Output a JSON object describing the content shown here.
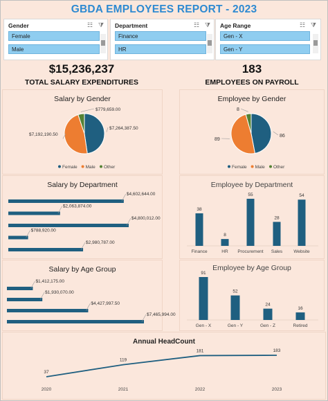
{
  "report_title": "GBDA EMPLOYEES REPORT - 2023",
  "slicers": [
    {
      "header": "Gender",
      "items": [
        "Female",
        "Male"
      ]
    },
    {
      "header": "Department",
      "items": [
        "Finance",
        "HR"
      ]
    },
    {
      "header": "Age Range",
      "items": [
        "Gen - X",
        "Gen - Y"
      ]
    }
  ],
  "kpis": [
    {
      "value": "$15,236,237",
      "label": "TOTAL SALARY EXPENDITURES"
    },
    {
      "value": "183",
      "label": "EMPLOYEES ON PAYROLL"
    }
  ],
  "colors": {
    "female": "#1f5f80",
    "male": "#ed7d31",
    "other": "#548235",
    "bar": "#1f5f80",
    "title": "#2e8ad1"
  },
  "chart_data": [
    {
      "id": "salary_gender",
      "type": "pie",
      "title": "Salary by Gender",
      "categories": [
        "Female",
        "Male",
        "Other"
      ],
      "values": [
        7264387.5,
        7192190.5,
        779659.0
      ],
      "data_labels": [
        "$7,264,387.50",
        "$7,192,190.50",
        "$779,659.00"
      ],
      "legend": [
        "Female",
        "Male",
        "Other"
      ]
    },
    {
      "id": "employee_gender",
      "type": "pie",
      "title": "Employee by Gender",
      "categories": [
        "Female",
        "Male",
        "Other"
      ],
      "values": [
        86,
        89,
        8
      ],
      "data_labels": [
        "86",
        "89",
        "8"
      ],
      "legend": [
        "Female",
        "Male",
        "Other"
      ]
    },
    {
      "id": "salary_department",
      "type": "bar",
      "orientation": "horizontal",
      "title": "Salary by Department",
      "values": [
        4602644.0,
        2063874.0,
        4800012.0,
        788920.0,
        2980787.0
      ],
      "data_labels": [
        "$4,602,644.00",
        "$2,063,874.00",
        "$4,800,012.00",
        "$788,920.00",
        "$2,980,787.00"
      ]
    },
    {
      "id": "employee_department",
      "type": "bar",
      "title": "Employee by Department",
      "categories": [
        "Finance",
        "HR",
        "Procurement",
        "Sales",
        "Website"
      ],
      "values": [
        38,
        8,
        55,
        28,
        54
      ]
    },
    {
      "id": "salary_age",
      "type": "bar",
      "orientation": "horizontal",
      "title": "Salary by Age Group",
      "values": [
        1412175.0,
        1930070.0,
        4427997.5,
        7465994.0
      ],
      "data_labels": [
        "$1,412,175.00",
        "$1,930,070.00",
        "$4,427,997.50",
        "$7,465,994.00"
      ]
    },
    {
      "id": "employee_age",
      "type": "bar",
      "title": "Employee by Age Group",
      "categories": [
        "Gen - X",
        "Gen - Y",
        "Gen - Z",
        "Retired"
      ],
      "values": [
        91,
        52,
        24,
        16
      ]
    },
    {
      "id": "annual_headcount",
      "type": "line",
      "title": "Annual HeadCount",
      "x": [
        "2020",
        "2021",
        "2022",
        "2023"
      ],
      "values": [
        37,
        119,
        181,
        183
      ]
    }
  ]
}
